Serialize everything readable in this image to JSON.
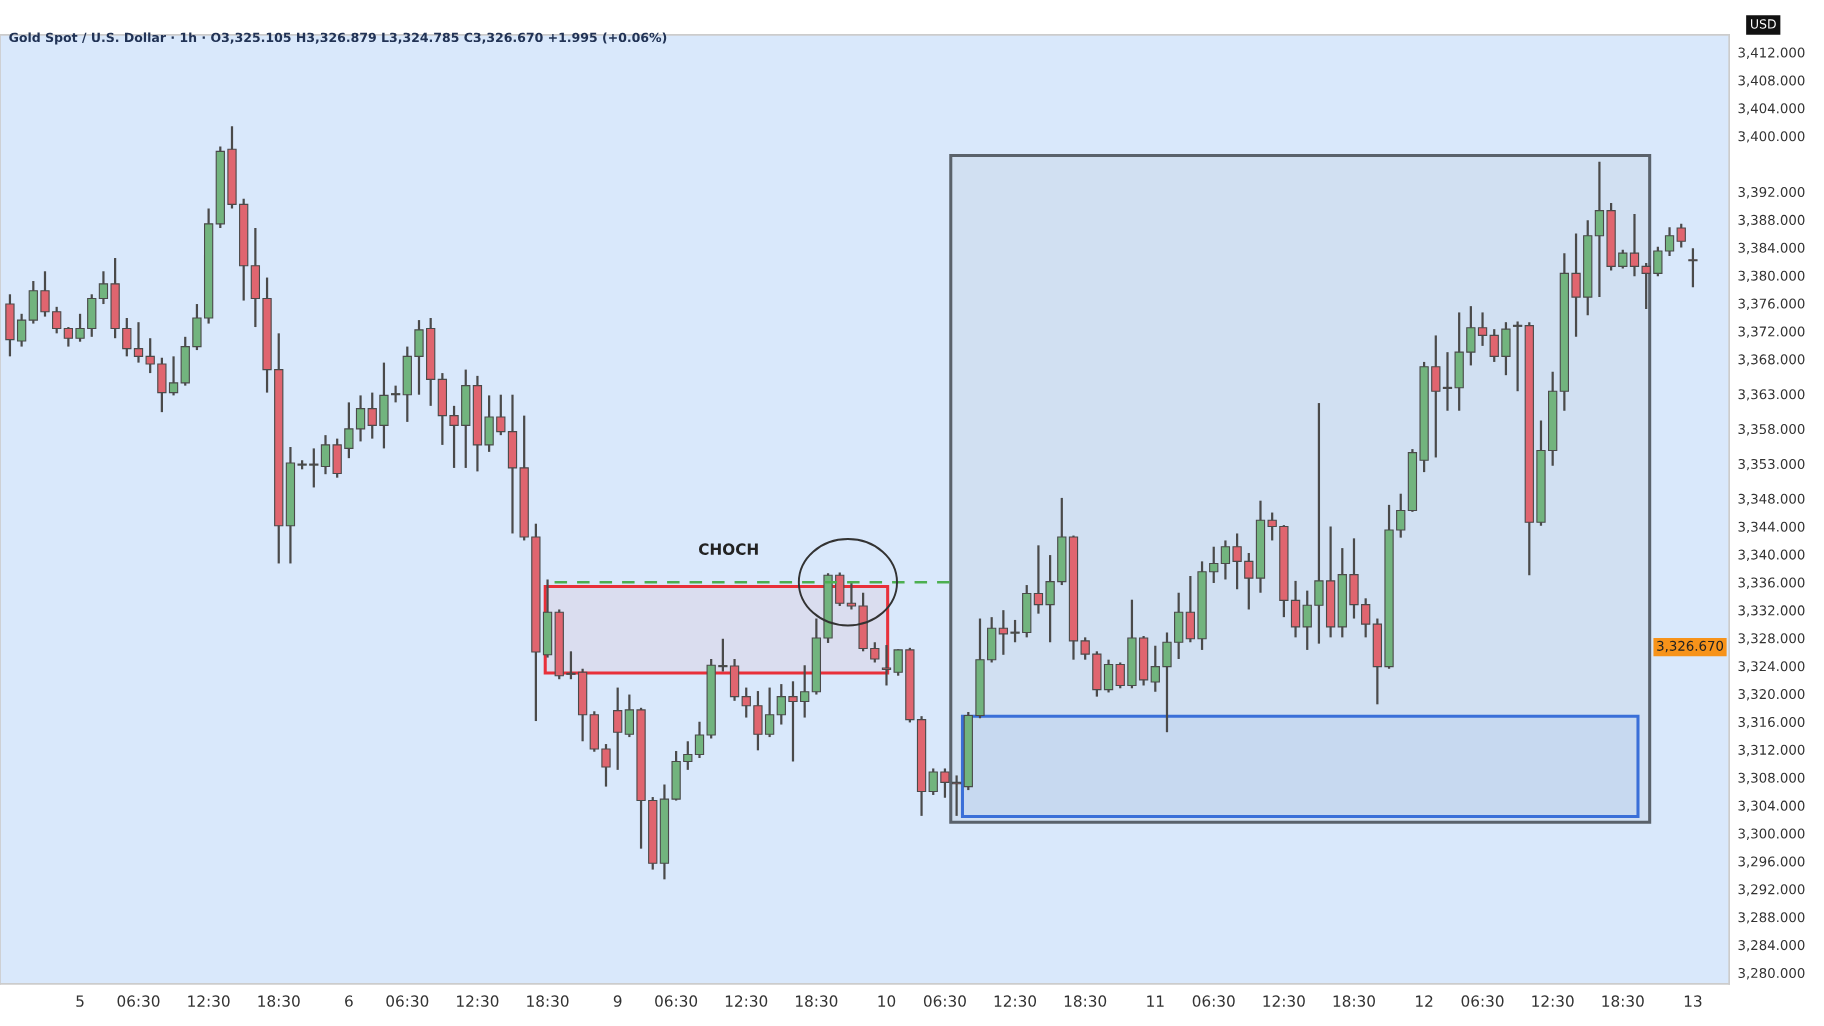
{
  "chart_data": {
    "type": "candlestick",
    "title": "Gold Spot / U.S. Dollar · 1h · O3,325.105 H3,326.879 L3,324.785 C3,326.670 +1.995 (+0.06%)",
    "ylabel": "USD",
    "categories": [
      null,
      null,
      null,
      null,
      null,
      null,
      "5",
      null,
      null,
      null,
      null,
      "06:30",
      null,
      null,
      null,
      null,
      null,
      "12:30",
      null,
      null,
      null,
      null,
      null,
      "18:30",
      null,
      null,
      null,
      null,
      null,
      "6",
      null,
      null,
      null,
      null,
      "06:30",
      null,
      null,
      null,
      null,
      null,
      "12:30",
      null,
      null,
      null,
      null,
      null,
      "18:30",
      null,
      null,
      null,
      null,
      null,
      "9",
      null,
      null,
      null,
      null,
      "06:30",
      null,
      null,
      null,
      null,
      null,
      "12:30",
      null,
      null,
      null,
      null,
      null,
      "18:30",
      null,
      null,
      null,
      null,
      null,
      "10",
      null,
      null,
      null,
      null,
      "06:30",
      null,
      null,
      null,
      null,
      null,
      "12:30",
      null,
      null,
      null,
      null,
      null,
      "18:30",
      null,
      null,
      null,
      null,
      null,
      "11",
      null,
      null,
      null,
      null,
      "06:30",
      null,
      null,
      null,
      null,
      null,
      "12:30",
      null,
      null,
      null,
      null,
      null,
      "18:30",
      null,
      null,
      null,
      null,
      null,
      "12",
      null,
      null,
      null,
      null,
      "06:30",
      null,
      null,
      null,
      null,
      null,
      "12:30",
      null,
      null,
      null,
      null,
      null,
      "18:30",
      null,
      null,
      null,
      null,
      null,
      "13"
    ],
    "ohlc": [
      [
        3375.9,
        3377.3,
        3368.4,
        3370.8
      ],
      [
        3370.6,
        3374.5,
        3369.8,
        3373.6
      ],
      [
        3373.6,
        3379.2,
        3373.1,
        3377.8
      ],
      [
        3377.8,
        3380.6,
        3374.1,
        3374.8
      ],
      [
        3374.8,
        3375.5,
        3371.7,
        3372.4
      ],
      [
        3372.4,
        3372.6,
        3369.8,
        3371.0
      ],
      [
        3371.0,
        3374.5,
        3370.5,
        3372.4
      ],
      [
        3372.4,
        3377.3,
        3371.2,
        3376.7
      ],
      [
        3376.7,
        3380.6,
        3375.9,
        3378.8
      ],
      [
        3378.8,
        3382.5,
        3371.0,
        3372.4
      ],
      [
        3372.4,
        3373.9,
        3368.4,
        3369.5
      ],
      [
        3369.5,
        3373.3,
        3367.5,
        3368.4
      ],
      [
        3368.4,
        3371.0,
        3366.0,
        3367.3
      ],
      [
        3367.3,
        3368.2,
        3360.4,
        3363.2
      ],
      [
        3363.2,
        3368.4,
        3362.8,
        3364.6
      ],
      [
        3364.6,
        3371.2,
        3364.2,
        3369.8
      ],
      [
        3369.8,
        3375.9,
        3369.3,
        3373.9
      ],
      [
        3373.9,
        3389.6,
        3373.1,
        3387.4
      ],
      [
        3387.4,
        3398.5,
        3386.8,
        3397.8
      ],
      [
        3398.1,
        3401.4,
        3389.6,
        3390.2
      ],
      [
        3390.2,
        3391.0,
        3376.4,
        3381.4
      ],
      [
        3381.4,
        3386.8,
        3372.6,
        3376.7
      ],
      [
        3376.7,
        3379.7,
        3363.2,
        3366.5
      ],
      [
        3366.5,
        3371.7,
        3338.7,
        3344.1
      ],
      [
        3344.1,
        3355.4,
        3338.7,
        3353.1
      ],
      [
        3352.8,
        3353.5,
        3352.2,
        3352.9
      ],
      [
        3352.8,
        3355.2,
        3349.6,
        3352.9
      ],
      [
        3352.6,
        3357.1,
        3351.5,
        3355.7
      ],
      [
        3355.7,
        3356.6,
        3351.0,
        3351.6
      ],
      [
        3355.2,
        3361.8,
        3353.8,
        3358.0
      ],
      [
        3358.0,
        3362.8,
        3356.2,
        3360.9
      ],
      [
        3360.9,
        3363.2,
        3356.6,
        3358.5
      ],
      [
        3358.5,
        3367.5,
        3355.2,
        3362.8
      ],
      [
        3362.9,
        3364.2,
        3361.8,
        3363.0
      ],
      [
        3362.9,
        3369.8,
        3359.0,
        3368.4
      ],
      [
        3368.4,
        3373.6,
        3362.9,
        3372.2
      ],
      [
        3372.4,
        3373.9,
        3361.3,
        3365.1
      ],
      [
        3365.1,
        3366.0,
        3355.7,
        3359.9
      ],
      [
        3359.9,
        3361.3,
        3352.4,
        3358.5
      ],
      [
        3358.5,
        3366.5,
        3352.4,
        3364.2
      ],
      [
        3364.2,
        3365.6,
        3351.9,
        3355.7
      ],
      [
        3355.7,
        3362.8,
        3354.7,
        3359.7
      ],
      [
        3359.7,
        3362.9,
        3357.1,
        3357.6
      ],
      [
        3357.6,
        3362.9,
        3343.0,
        3352.4
      ],
      [
        3352.4,
        3359.9,
        3342.0,
        3342.5
      ],
      [
        3342.5,
        3344.4,
        3316.1,
        3326.0
      ],
      [
        3325.6,
        3336.4,
        3325.2,
        3331.7
      ],
      [
        3331.7,
        3332.1,
        3322.1,
        3322.6
      ],
      [
        3322.9,
        3326.1,
        3322.1,
        3322.8
      ],
      [
        3323.1,
        3323.6,
        3313.2,
        3317.0
      ],
      [
        3317.0,
        3317.5,
        3311.7,
        3312.1
      ],
      [
        3312.1,
        3312.8,
        3306.7,
        3309.5
      ],
      [
        3317.6,
        3320.9,
        3309.1,
        3314.5
      ],
      [
        3314.2,
        3319.9,
        3313.8,
        3317.7
      ],
      [
        3317.7,
        3318.0,
        3297.8,
        3304.7
      ],
      [
        3304.7,
        3305.2,
        3294.8,
        3295.7
      ],
      [
        3295.7,
        3307.0,
        3293.4,
        3304.9
      ],
      [
        3304.9,
        3311.8,
        3304.7,
        3310.3
      ],
      [
        3310.3,
        3313.2,
        3309.1,
        3311.3
      ],
      [
        3311.3,
        3316.0,
        3310.8,
        3314.1
      ],
      [
        3314.1,
        3325.0,
        3313.6,
        3324.1
      ],
      [
        3323.9,
        3327.9,
        3323.2,
        3324.0
      ],
      [
        3324.0,
        3325.0,
        3319.0,
        3319.6
      ],
      [
        3319.6,
        3320.9,
        3316.6,
        3318.3
      ],
      [
        3318.3,
        3320.4,
        3311.9,
        3314.2
      ],
      [
        3314.2,
        3320.9,
        3313.8,
        3317.0
      ],
      [
        3317.0,
        3321.4,
        3315.6,
        3319.6
      ],
      [
        3319.6,
        3321.8,
        3310.3,
        3318.9
      ],
      [
        3318.9,
        3324.1,
        3316.6,
        3320.3
      ],
      [
        3320.3,
        3330.8,
        3319.9,
        3328.0
      ],
      [
        3328.0,
        3337.3,
        3327.3,
        3337.0
      ],
      [
        3337.0,
        3337.4,
        3332.6,
        3333.0
      ],
      [
        3333.0,
        3336.1,
        3332.1,
        3332.6
      ],
      [
        3332.6,
        3334.5,
        3326.1,
        3326.5
      ],
      [
        3326.5,
        3327.4,
        3324.5,
        3325.0
      ],
      [
        3323.7,
        3327.0,
        3321.2,
        3323.5
      ],
      [
        3323.1,
        3326.4,
        3322.6,
        3326.3
      ],
      [
        3326.3,
        3326.6,
        3315.9,
        3316.3
      ],
      [
        3316.3,
        3316.8,
        3302.5,
        3306.0
      ],
      [
        3306.0,
        3309.3,
        3305.5,
        3308.8
      ],
      [
        3308.8,
        3309.3,
        3305.1,
        3307.3
      ],
      [
        3307.3,
        3308.3,
        3302.5,
        3307.1
      ],
      [
        3306.7,
        3317.4,
        3306.2,
        3316.9
      ],
      [
        3316.9,
        3330.8,
        3316.5,
        3324.9
      ],
      [
        3324.9,
        3331.0,
        3324.5,
        3329.4
      ],
      [
        3329.4,
        3332.0,
        3325.6,
        3328.6
      ],
      [
        3328.7,
        3330.6,
        3327.4,
        3328.8
      ],
      [
        3328.8,
        3335.6,
        3328.1,
        3334.4
      ],
      [
        3334.4,
        3341.3,
        3331.5,
        3332.8
      ],
      [
        3332.8,
        3339.9,
        3327.4,
        3336.1
      ],
      [
        3336.1,
        3348.1,
        3335.6,
        3342.5
      ],
      [
        3342.5,
        3342.7,
        3324.9,
        3327.6
      ],
      [
        3327.6,
        3328.1,
        3324.9,
        3325.7
      ],
      [
        3325.7,
        3326.1,
        3319.6,
        3320.6
      ],
      [
        3320.6,
        3324.9,
        3320.2,
        3324.2
      ],
      [
        3324.2,
        3324.5,
        3320.8,
        3321.2
      ],
      [
        3321.2,
        3333.5,
        3320.8,
        3328.0
      ],
      [
        3328.0,
        3328.3,
        3321.2,
        3322.0
      ],
      [
        3321.7,
        3326.9,
        3320.3,
        3323.9
      ],
      [
        3323.9,
        3328.8,
        3314.5,
        3327.4
      ],
      [
        3327.4,
        3334.5,
        3325.0,
        3331.7
      ],
      [
        3331.7,
        3336.9,
        3327.4,
        3327.9
      ],
      [
        3327.9,
        3339.0,
        3326.3,
        3337.5
      ],
      [
        3337.5,
        3341.1,
        3335.9,
        3338.7
      ],
      [
        3338.7,
        3342.0,
        3336.4,
        3341.1
      ],
      [
        3341.1,
        3343.0,
        3335.0,
        3339.0
      ],
      [
        3339.0,
        3340.2,
        3332.1,
        3336.6
      ],
      [
        3336.6,
        3347.7,
        3334.5,
        3344.9
      ],
      [
        3344.9,
        3346.0,
        3342.0,
        3344.0
      ],
      [
        3344.0,
        3344.2,
        3331.0,
        3333.4
      ],
      [
        3333.4,
        3336.2,
        3328.1,
        3329.6
      ],
      [
        3329.6,
        3334.8,
        3326.3,
        3332.7
      ],
      [
        3332.7,
        3361.7,
        3327.2,
        3336.2
      ],
      [
        3336.2,
        3344.0,
        3328.1,
        3329.6
      ],
      [
        3329.6,
        3340.9,
        3328.1,
        3337.1
      ],
      [
        3337.1,
        3342.3,
        3330.8,
        3332.8
      ],
      [
        3332.8,
        3333.7,
        3328.1,
        3330.0
      ],
      [
        3330.0,
        3330.8,
        3318.5,
        3323.9
      ],
      [
        3323.9,
        3347.1,
        3323.6,
        3343.5
      ],
      [
        3343.5,
        3348.7,
        3342.4,
        3346.3
      ],
      [
        3346.3,
        3355.1,
        3346.1,
        3354.6
      ],
      [
        3353.5,
        3367.6,
        3351.8,
        3366.9
      ],
      [
        3366.9,
        3371.4,
        3353.9,
        3363.4
      ],
      [
        3363.8,
        3369.0,
        3360.6,
        3363.9
      ],
      [
        3363.9,
        3374.7,
        3360.6,
        3369.0
      ],
      [
        3369.0,
        3375.6,
        3367.1,
        3372.5
      ],
      [
        3372.5,
        3374.7,
        3369.9,
        3371.4
      ],
      [
        3371.4,
        3372.3,
        3367.6,
        3368.4
      ],
      [
        3368.4,
        3373.3,
        3365.7,
        3372.3
      ],
      [
        3372.7,
        3373.4,
        3363.4,
        3372.8
      ],
      [
        3372.8,
        3373.3,
        3337.0,
        3344.6
      ],
      [
        3344.6,
        3359.2,
        3344.1,
        3354.9
      ],
      [
        3354.9,
        3366.2,
        3352.7,
        3363.4
      ],
      [
        3363.4,
        3383.2,
        3360.6,
        3380.3
      ],
      [
        3380.3,
        3386.0,
        3371.2,
        3376.9
      ],
      [
        3376.9,
        3387.9,
        3374.3,
        3385.7
      ],
      [
        3385.7,
        3396.3,
        3376.9,
        3389.3
      ],
      [
        3389.3,
        3390.4,
        3380.7,
        3381.3
      ],
      [
        3381.3,
        3383.7,
        3381.0,
        3383.2
      ],
      [
        3383.2,
        3388.8,
        3379.9,
        3381.3
      ],
      [
        3381.3,
        3381.8,
        3375.2,
        3380.3
      ],
      [
        3380.3,
        3384.1,
        3379.9,
        3383.5
      ],
      [
        3383.5,
        3386.9,
        3382.8,
        3385.7
      ],
      [
        3386.8,
        3387.4,
        3384.0,
        3384.9
      ],
      [
        3382.2,
        3383.9,
        3378.3,
        3382.1
      ]
    ],
    "annotations": [
      "3,326.670"
    ],
    "colors": [
      "#e0656f",
      "#72b47e",
      "#72b47e",
      "#e0656f",
      "#e0656f",
      "#e0656f",
      "#72b47e",
      "#72b47e",
      "#72b47e",
      "#e0656f",
      "#e0656f",
      "#e0656f",
      "#e0656f",
      "#e0656f",
      "#72b47e",
      "#72b47e",
      "#72b47e",
      "#72b47e",
      "#72b47e",
      "#e0656f",
      "#e0656f",
      "#e0656f",
      "#e0656f",
      "#e0656f",
      "#72b47e",
      "#72b47e",
      "#72b47e",
      "#72b47e",
      "#e0656f",
      "#72b47e",
      "#72b47e",
      "#e0656f",
      "#72b47e",
      "#72b47e",
      "#72b47e",
      "#72b47e",
      "#e0656f",
      "#e0656f",
      "#e0656f",
      "#72b47e",
      "#e0656f",
      "#72b47e",
      "#e0656f",
      "#e0656f",
      "#e0656f",
      "#e0656f",
      "#72b47e",
      "#e0656f",
      "#e0656f",
      "#e0656f",
      "#e0656f",
      "#e0656f",
      "#e0656f",
      "#72b47e",
      "#e0656f",
      "#e0656f",
      "#72b47e",
      "#72b47e",
      "#72b47e",
      "#72b47e",
      "#72b47e",
      "#72b47e",
      "#e0656f",
      "#e0656f",
      "#e0656f",
      "#72b47e",
      "#72b47e",
      "#e0656f",
      "#72b47e",
      "#72b47e",
      "#72b47e",
      "#e0656f",
      "#e0656f",
      "#e0656f",
      "#e0656f",
      "#e0656f",
      "#72b47e",
      "#e0656f",
      "#e0656f",
      "#72b47e",
      "#e0656f",
      "#e0656f",
      "#72b47e",
      "#72b47e",
      "#72b47e",
      "#e0656f",
      "#72b47e",
      "#72b47e",
      "#e0656f",
      "#72b47e",
      "#72b47e",
      "#e0656f",
      "#e0656f",
      "#e0656f",
      "#72b47e",
      "#e0656f",
      "#72b47e",
      "#e0656f",
      "#72b47e",
      "#72b47e",
      "#72b47e",
      "#e0656f",
      "#72b47e",
      "#72b47e",
      "#72b47e",
      "#e0656f",
      "#e0656f",
      "#72b47e",
      "#e0656f",
      "#e0656f",
      "#e0656f",
      "#72b47e",
      "#72b47e",
      "#e0656f",
      "#72b47e",
      "#e0656f",
      "#e0656f",
      "#e0656f",
      "#72b47e",
      "#72b47e",
      "#72b47e",
      "#72b47e",
      "#e0656f",
      "#72b47e",
      "#72b47e",
      "#72b47e",
      "#e0656f",
      "#e0656f",
      "#72b47e",
      "#72b47e",
      "#e0656f",
      "#72b47e",
      "#72b47e",
      "#72b47e",
      "#e0656f",
      "#72b47e",
      "#72b47e",
      "#e0656f",
      "#72b47e",
      "#e0656f",
      "#e0656f",
      "#72b47e",
      "#72b47e",
      "#e0656f",
      "#e0656f"
    ],
    "ylim": [
      3278.4,
      3414.5
    ],
    "yticks": [
      {
        "value": 3412,
        "label": "3,412.000"
      },
      {
        "value": 3408,
        "label": "3,408.000"
      },
      {
        "value": 3404,
        "label": "3,404.000"
      },
      {
        "value": 3400,
        "label": "3,400.000"
      },
      {
        "value": 3392,
        "label": "3,392.000"
      },
      {
        "value": 3388,
        "label": "3,388.000"
      },
      {
        "value": 3384,
        "label": "3,384.000"
      },
      {
        "value": 3380,
        "label": "3,380.000"
      },
      {
        "value": 3376,
        "label": "3,376.000"
      },
      {
        "value": 3372,
        "label": "3,372.000"
      },
      {
        "value": 3368,
        "label": "3,368.000"
      },
      {
        "value": 3363,
        "label": "3,363.000"
      },
      {
        "value": 3358,
        "label": "3,358.000"
      },
      {
        "value": 3353,
        "label": "3,353.000"
      },
      {
        "value": 3348,
        "label": "3,348.000"
      },
      {
        "value": 3344,
        "label": "3,344.000"
      },
      {
        "value": 3340,
        "label": "3,340.000"
      },
      {
        "value": 3336,
        "label": "3,336.000"
      },
      {
        "value": 3332,
        "label": "3,332.000"
      },
      {
        "value": 3328,
        "label": "3,328.000"
      },
      {
        "value": 3324,
        "label": "3,324.000"
      },
      {
        "value": 3320,
        "label": "3,320.000"
      },
      {
        "value": 3316,
        "label": "3,316.000"
      },
      {
        "value": 3312,
        "label": "3,312.000"
      },
      {
        "value": 3308,
        "label": "3,308.000"
      },
      {
        "value": 3304,
        "label": "3,304.000"
      },
      {
        "value": 3300,
        "label": "3,300.000"
      },
      {
        "value": 3296,
        "label": "3,296.000"
      },
      {
        "value": 3292,
        "label": "3,292.000"
      },
      {
        "value": 3288,
        "label": "3,288.000"
      },
      {
        "value": 3284,
        "label": "3,284.000"
      },
      {
        "value": 3280,
        "label": "3,280.000"
      }
    ],
    "ref_lines": [
      {
        "axis": "y",
        "value": 3336,
        "label": "CHOCH",
        "color": "#4caf50",
        "line_style": "dashed"
      }
    ],
    "bands": [
      {
        "axis": "y",
        "from": 3323.0,
        "to": 3335.4,
        "color": "#e8303a"
      },
      {
        "axis": "y",
        "from": 3301.6,
        "to": 3397.2,
        "color": "#5a626b"
      },
      {
        "axis": "y",
        "from": 3302.4,
        "to": 3316.8,
        "color": "#3a6fd8"
      }
    ]
  }
}
